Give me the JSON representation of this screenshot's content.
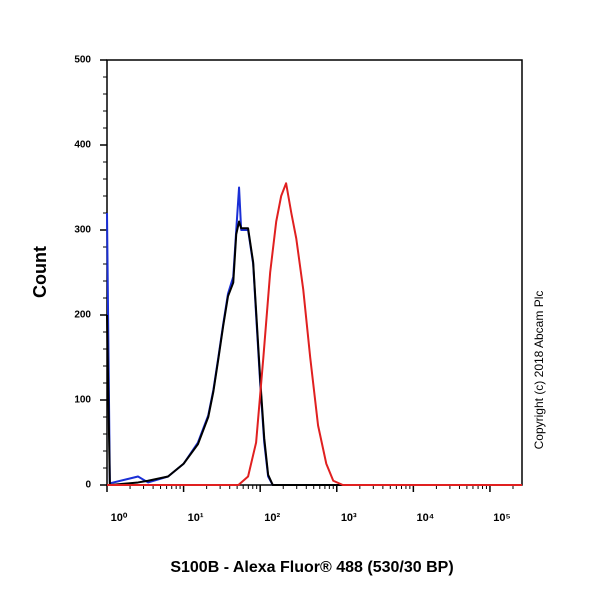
{
  "chart_data": {
    "type": "line",
    "x_label": "S100B - Alexa Fluor® 488 (530/30 BP)",
    "y_label": "Count",
    "annotation": "Copyright (c) 2018 Abcam Plc",
    "x_log_scale": true,
    "xlim": [
      1,
      262144
    ],
    "ylim": [
      0,
      500
    ],
    "xticks": [
      {
        "value": 1,
        "label": "10⁰"
      },
      {
        "value": 10,
        "label": "10¹"
      },
      {
        "value": 100,
        "label": "10²"
      },
      {
        "value": 1000,
        "label": "10³"
      },
      {
        "value": 10000,
        "label": "10⁴"
      },
      {
        "value": 100000,
        "label": "10⁵"
      }
    ],
    "yticks": [
      0,
      100,
      200,
      300,
      400,
      500
    ],
    "series": [
      {
        "color": "#1a2fd6",
        "x": [
          1,
          1.09,
          2.54,
          3.44,
          6.27,
          10,
          15.4,
          21,
          24.5,
          28.4,
          33,
          38,
          44.5,
          48.7,
          53,
          56.5,
          69.5,
          81,
          88.5,
          100,
          113,
          127,
          146,
          262144
        ],
        "values": [
          320,
          2,
          10,
          3,
          10,
          25,
          50,
          82,
          112,
          150,
          190,
          225,
          245,
          300,
          350,
          300,
          300,
          260,
          200,
          120,
          50,
          10,
          0,
          0
        ]
      },
      {
        "color": "#000000",
        "x": [
          1,
          1.09,
          2.54,
          3.44,
          6.27,
          10,
          15.4,
          21,
          24.5,
          28.4,
          33,
          38,
          44.5,
          48.7,
          53,
          56.5,
          69.5,
          81,
          88.5,
          100,
          113,
          127,
          146,
          262144
        ],
        "values": [
          200,
          0,
          3,
          5,
          10,
          25,
          48,
          80,
          110,
          148,
          188,
          222,
          238,
          295,
          310,
          302,
          302,
          262,
          205,
          125,
          55,
          12,
          0,
          0
        ]
      },
      {
        "color": "#e02020",
        "x": [
          1,
          52,
          69.5,
          88.5,
          110,
          135,
          162,
          188,
          218,
          255,
          296,
          365,
          450,
          570,
          730,
          900,
          1200,
          262144
        ],
        "values": [
          0,
          0,
          10,
          50,
          150,
          250,
          310,
          340,
          355,
          320,
          290,
          230,
          150,
          70,
          25,
          5,
          0,
          0
        ]
      }
    ]
  }
}
